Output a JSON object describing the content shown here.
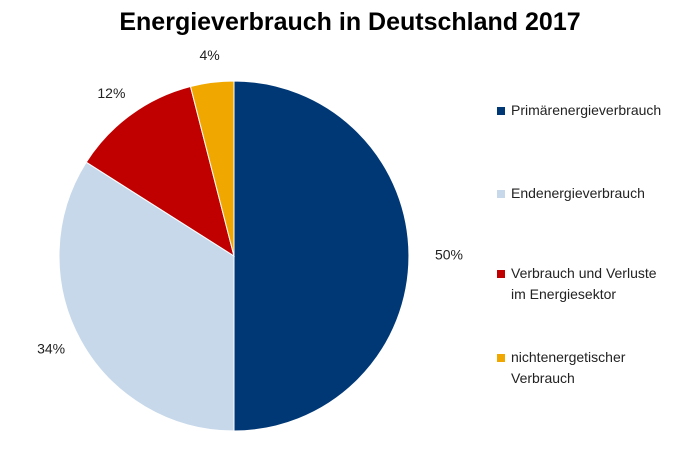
{
  "chart_data": {
    "type": "pie",
    "title": "Energieverbrauch in Deutschland 2017",
    "slices": [
      {
        "label": "Primärenergieverbrauch",
        "value": 50,
        "value_label": "50%",
        "color": "#003876"
      },
      {
        "label": "Endenergieverbrauch",
        "value": 34,
        "value_label": "34%",
        "color": "#c6d8ea"
      },
      {
        "label": "Verbrauch und Verluste\nim Energiesektor",
        "value": 12,
        "value_label": "12%",
        "color": "#c00000"
      },
      {
        "label": " nichtenergetischer\nVerbrauch",
        "value": 4,
        "value_label": "4%",
        "color": "#f0a800"
      }
    ],
    "start_angle": "12 o'clock",
    "direction": "clockwise",
    "legend": "right"
  }
}
